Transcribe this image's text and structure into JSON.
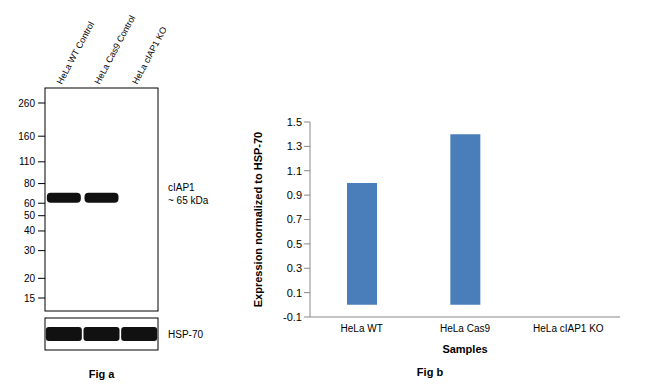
{
  "blot": {
    "lanes": [
      "HeLa WT Control",
      "HeLa Cas9 Control",
      "HeLa cIAP1 KO"
    ],
    "markers": [
      260,
      160,
      110,
      80,
      60,
      50,
      40,
      30,
      20,
      15
    ],
    "target": "cIAP1",
    "target_size": "~ 65 kDa",
    "loading_control": "HSP-70",
    "caption": "Fig a"
  },
  "chart_data": {
    "type": "bar",
    "categories": [
      "HeLa WT",
      "HeLa Cas9",
      "HeLa cIAP1  KO"
    ],
    "values": [
      1.0,
      1.4,
      0
    ],
    "color": "#4a7ebb",
    "ylim": [
      -0.1,
      1.5
    ],
    "yticks": [
      -0.1,
      0.1,
      0.3,
      0.5,
      0.7,
      0.9,
      1.1,
      1.3,
      1.5
    ],
    "x_label": "Samples",
    "y_label": "Expression normalized to HSP-70",
    "grid": false
  },
  "chart_caption": "Fig b"
}
